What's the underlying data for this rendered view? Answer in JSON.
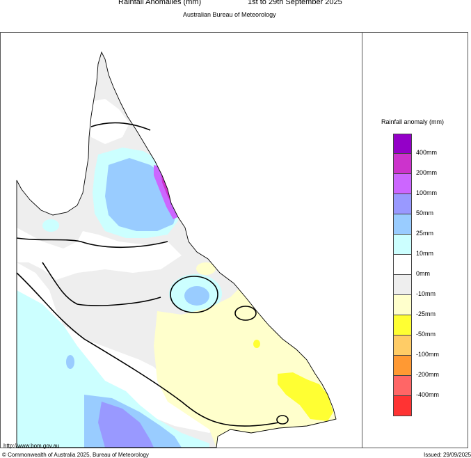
{
  "header": {
    "title": "Rainfall Anomalies (mm)",
    "period": "1st to 29th September 2025",
    "subtitle": "Australian Bureau of Meteorology"
  },
  "legend": {
    "title": "Rainfall anomaly (mm)",
    "items": [
      {
        "label": "400mm",
        "color": "#9400c8"
      },
      {
        "label": "200mm",
        "color": "#cc33cc"
      },
      {
        "label": "100mm",
        "color": "#cc66ff"
      },
      {
        "label": "50mm",
        "color": "#9999ff"
      },
      {
        "label": "25mm",
        "color": "#99ccff"
      },
      {
        "label": "10mm",
        "color": "#ccffff"
      },
      {
        "label": "0mm",
        "color": "#ffffff"
      },
      {
        "label": "-10mm",
        "color": "#eeeeee"
      },
      {
        "label": "-25mm",
        "color": "#ffffcc"
      },
      {
        "label": "-50mm",
        "color": "#ffff33"
      },
      {
        "label": "-100mm",
        "color": "#ffcc66"
      },
      {
        "label": "-200mm",
        "color": "#ff9933"
      },
      {
        "label": "-400mm",
        "color": "#ff6666"
      },
      {
        "label": "",
        "color": "#ff3333"
      }
    ]
  },
  "footer": {
    "url": "http://www.bom.gov.au",
    "copyright": "© Commonwealth of Australia 2025, Bureau of Meteorology",
    "issued": "Issued: 29/09/2025"
  }
}
